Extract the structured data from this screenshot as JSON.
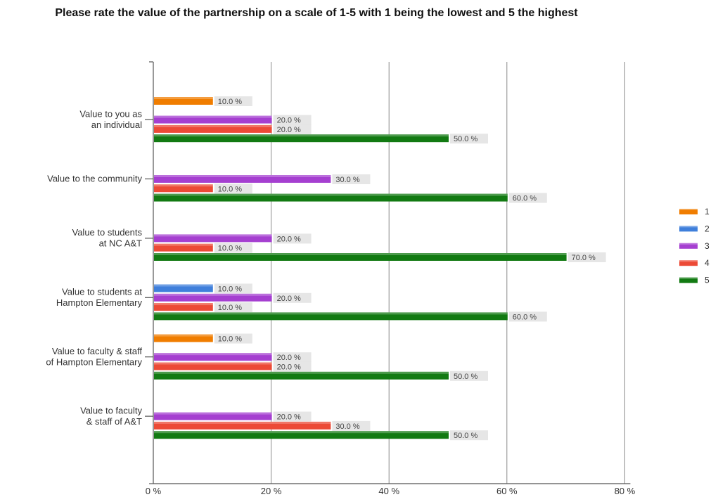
{
  "chart_data": {
    "type": "bar",
    "orientation": "horizontal",
    "title": "Please rate the value of the partnership on a scale of 1-5 with 1 being the lowest and 5 the highest",
    "categories": [
      [
        "Value to you as",
        "an individual"
      ],
      [
        "Value to the community"
      ],
      [
        "Value to students",
        "at NC A&T"
      ],
      [
        "Value to students at",
        "Hampton Elementary"
      ],
      [
        "Value to faculty & staff",
        "of Hampton Elementary"
      ],
      [
        "Value to faculty",
        "& staff of A&T"
      ]
    ],
    "series": [
      {
        "name": "1",
        "color": "#f07d00",
        "values": [
          10,
          0,
          0,
          0,
          10,
          0
        ]
      },
      {
        "name": "2",
        "color": "#3f7fdb",
        "values": [
          0,
          0,
          0,
          10,
          0,
          0
        ]
      },
      {
        "name": "3",
        "color": "#a53fd0",
        "values": [
          20,
          30,
          20,
          20,
          20,
          20
        ]
      },
      {
        "name": "4",
        "color": "#ec4a36",
        "values": [
          20,
          10,
          10,
          10,
          20,
          30
        ]
      },
      {
        "name": "5",
        "color": "#127a12",
        "values": [
          50,
          60,
          70,
          60,
          50,
          50
        ]
      }
    ],
    "value_labels": [
      [
        "10.0 %",
        "",
        "20.0 %",
        "20.0 %",
        "50.0 %"
      ],
      [
        "",
        "",
        "30.0 %",
        "10.0 %",
        "60.0 %"
      ],
      [
        "",
        "",
        "20.0 %",
        "10.0 %",
        "70.0 %"
      ],
      [
        "",
        "10.0 %",
        "20.0 %",
        "10.0 %",
        "60.0 %"
      ],
      [
        "10.0 %",
        "",
        "20.0 %",
        "20.0 %",
        "50.0 %"
      ],
      [
        "",
        "",
        "20.0 %",
        "30.0 %",
        "50.0 %"
      ]
    ],
    "xlim": [
      0,
      80
    ],
    "xticks": [
      0,
      20,
      40,
      60,
      80
    ],
    "xtick_labels": [
      "0 %",
      "20 %",
      "40 %",
      "60 %",
      "80 %"
    ],
    "grid": true,
    "legend_position": "right"
  }
}
